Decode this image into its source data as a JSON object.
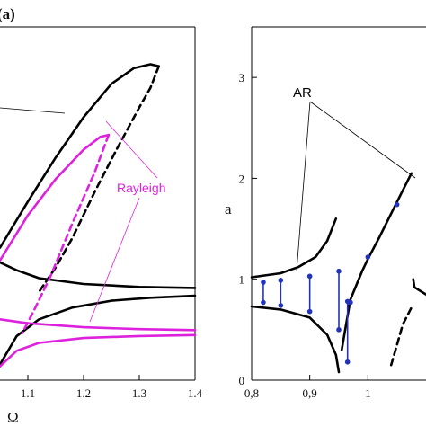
{
  "panel_label": "(a)",
  "chart_data": [
    {
      "type": "line",
      "xlabel": "Ω",
      "ylabel": "",
      "xlim": [
        1.05,
        1.4
      ],
      "ylim": [
        0,
        3.6
      ],
      "x_ticks": [
        "1.1",
        "1.2",
        "1.3",
        "1.4"
      ],
      "x_tick_values": [
        1.1,
        1.2,
        1.3,
        1.4
      ],
      "annotations": [
        {
          "text": "Rayleigh",
          "color": "#dd22dd"
        }
      ],
      "series": [
        {
          "style": "solid",
          "color": "#000000",
          "points": [
            [
              1.05,
              1.35
            ],
            [
              1.1,
              1.82
            ],
            [
              1.15,
              2.27
            ],
            [
              1.2,
              2.68
            ],
            [
              1.25,
              3.02
            ],
            [
              1.29,
              3.18
            ],
            [
              1.32,
              3.22
            ],
            [
              1.335,
              3.2
            ]
          ]
        },
        {
          "style": "dashed",
          "color": "#000000",
          "points": [
            [
              1.335,
              3.2
            ],
            [
              1.32,
              2.98
            ],
            [
              1.3,
              2.78
            ],
            [
              1.26,
              2.36
            ],
            [
              1.22,
              1.92
            ],
            [
              1.18,
              1.45
            ],
            [
              1.15,
              1.15
            ],
            [
              1.12,
              0.9
            ]
          ]
        },
        {
          "style": "solid",
          "color": "#000000",
          "points": [
            [
              1.05,
              1.2
            ],
            [
              1.08,
              1.12
            ],
            [
              1.12,
              1.04
            ],
            [
              1.2,
              0.98
            ],
            [
              1.3,
              0.95
            ],
            [
              1.4,
              0.94
            ]
          ]
        },
        {
          "style": "solid",
          "color": "#000000",
          "points": [
            [
              1.05,
              0.16
            ],
            [
              1.08,
              0.45
            ],
            [
              1.12,
              0.62
            ],
            [
              1.18,
              0.74
            ],
            [
              1.25,
              0.81
            ],
            [
              1.32,
              0.84
            ],
            [
              1.4,
              0.86
            ]
          ]
        },
        {
          "style": "solid",
          "color": "#dd22dd",
          "points": [
            [
              1.05,
              1.22
            ],
            [
              1.1,
              1.68
            ],
            [
              1.15,
              2.05
            ],
            [
              1.2,
              2.35
            ],
            [
              1.23,
              2.48
            ],
            [
              1.245,
              2.5
            ]
          ]
        },
        {
          "style": "dashed",
          "color": "#dd22dd",
          "points": [
            [
              1.245,
              2.5
            ],
            [
              1.22,
              2.12
            ],
            [
              1.18,
              1.6
            ],
            [
              1.14,
              1.05
            ],
            [
              1.11,
              0.7
            ],
            [
              1.09,
              0.48
            ]
          ]
        },
        {
          "style": "solid",
          "color": "#dd22dd",
          "points": [
            [
              1.05,
              0.62
            ],
            [
              1.1,
              0.58
            ],
            [
              1.2,
              0.54
            ],
            [
              1.3,
              0.52
            ],
            [
              1.4,
              0.51
            ]
          ]
        },
        {
          "style": "solid",
          "color": "#dd22dd",
          "points": [
            [
              1.05,
              0.14
            ],
            [
              1.08,
              0.3
            ],
            [
              1.12,
              0.38
            ],
            [
              1.2,
              0.43
            ],
            [
              1.3,
              0.45
            ],
            [
              1.4,
              0.46
            ]
          ]
        }
      ]
    },
    {
      "type": "line",
      "xlabel": "",
      "ylabel": "a",
      "xlim": [
        0.8,
        1.1
      ],
      "ylim": [
        0,
        3.5
      ],
      "x_ticks": [
        "0,8",
        "0,9",
        "1"
      ],
      "x_tick_values": [
        0.8,
        0.9,
        1.0
      ],
      "y_ticks": [
        "0",
        "1",
        "2",
        "3"
      ],
      "y_tick_values": [
        0,
        1,
        2,
        3
      ],
      "annotations": [
        {
          "text": "AR",
          "color": "#000000"
        }
      ],
      "series": [
        {
          "style": "solid",
          "color": "#000000",
          "points": [
            [
              0.8,
              1.02
            ],
            [
              0.85,
              1.06
            ],
            [
              0.88,
              1.12
            ],
            [
              0.91,
              1.22
            ],
            [
              0.93,
              1.38
            ],
            [
              0.945,
              1.6
            ]
          ]
        },
        {
          "style": "solid",
          "color": "#000000",
          "points": [
            [
              0.8,
              0.73
            ],
            [
              0.85,
              0.7
            ],
            [
              0.9,
              0.62
            ],
            [
              0.93,
              0.45
            ],
            [
              0.945,
              0.25
            ],
            [
              0.95,
              0.08
            ]
          ]
        },
        {
          "style": "solid",
          "color": "#000000",
          "points": [
            [
              0.955,
              0.3
            ],
            [
              0.97,
              0.8
            ],
            [
              0.99,
              1.08
            ],
            [
              1.0,
              1.2
            ],
            [
              1.02,
              1.42
            ],
            [
              1.04,
              1.65
            ],
            [
              1.06,
              1.88
            ],
            [
              1.075,
              2.05
            ]
          ]
        },
        {
          "style": "dashed",
          "color": "#000000",
          "points": [
            [
              1.04,
              0.15
            ],
            [
              1.05,
              0.35
            ],
            [
              1.06,
              0.55
            ],
            [
              1.075,
              0.72
            ]
          ]
        },
        {
          "style": "solid",
          "color": "#000000",
          "points": [
            [
              1.078,
              1.0
            ],
            [
              1.08,
              0.92
            ],
            [
              1.1,
              0.85
            ]
          ]
        }
      ],
      "markers": {
        "color": "#2233bb",
        "segments": [
          {
            "x": 0.82,
            "y1": 0.77,
            "y2": 0.97
          },
          {
            "x": 0.85,
            "y1": 0.74,
            "y2": 0.99
          },
          {
            "x": 0.9,
            "y1": 0.68,
            "y2": 1.03
          },
          {
            "x": 0.95,
            "y1": 0.5,
            "y2": 1.08
          },
          {
            "x": 0.965,
            "y1": 0.18,
            "y2": 0.78
          },
          {
            "x": 0.97,
            "y1": 0.77,
            "y2": 0.77
          },
          {
            "x": 1.0,
            "y1": 1.22,
            "y2": 1.22
          },
          {
            "x": 1.05,
            "y1": 1.74,
            "y2": 1.74
          }
        ]
      }
    }
  ]
}
